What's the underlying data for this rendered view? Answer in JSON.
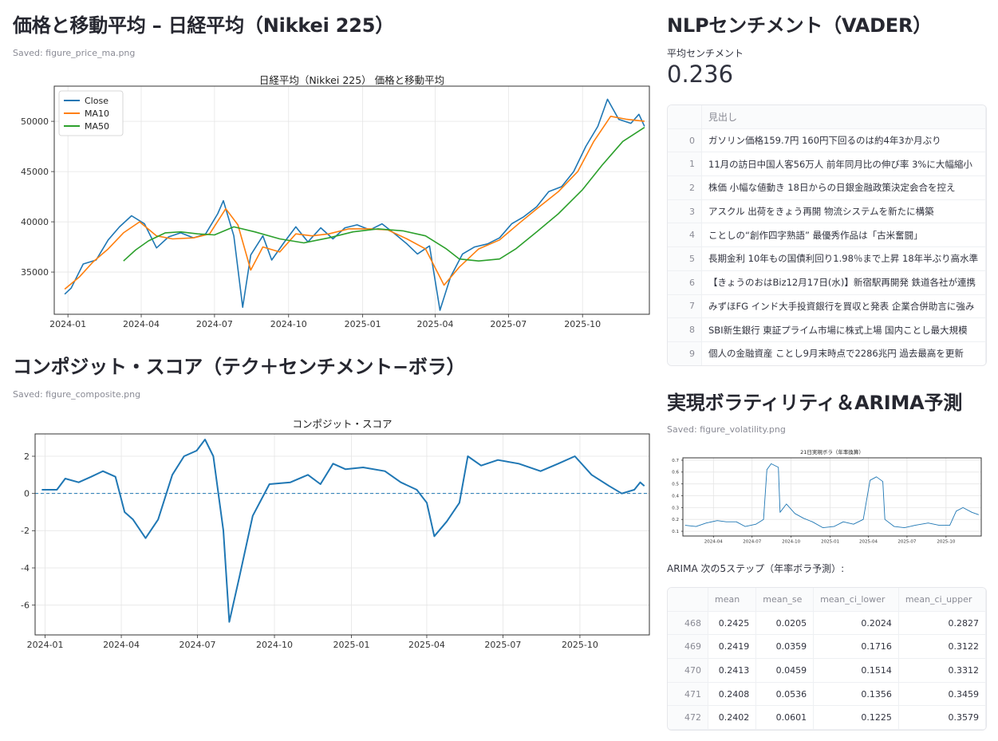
{
  "sections": {
    "price": {
      "title": "価格と移動平均 – 日経平均（Nikkei 225）",
      "caption": "Saved: figure_price_ma.png"
    },
    "composite": {
      "title": "コンポジット・スコア（テク＋センチメント−ボラ）",
      "caption": "Saved: figure_composite.png"
    },
    "nlp": {
      "title": "NLPセンチメント（VADER）",
      "metric_label": "平均センチメント",
      "metric_value": "0.236"
    },
    "volatility": {
      "title": "実現ボラティリティ＆ARIMA予測",
      "caption": "Saved: figure_volatility.png",
      "arima_label": "ARIMA 次の5ステップ（年率ボラ予測）:"
    }
  },
  "headlines_table": {
    "header": "見出し",
    "rows": [
      {
        "idx": "0",
        "text": "ガソリン価格159.7円 160円下回るのは約4年3か月ぶり"
      },
      {
        "idx": "1",
        "text": "11月の訪日中国人客56万人 前年同月比の伸び率 3%に大幅縮小"
      },
      {
        "idx": "2",
        "text": "株価 小幅な値動き 18日からの日銀金融政策決定会合を控え"
      },
      {
        "idx": "3",
        "text": "アスクル 出荷をきょう再開 物流システムを新たに構築"
      },
      {
        "idx": "4",
        "text": "ことしの“創作四字熟語” 最優秀作品は「古米奮闘」"
      },
      {
        "idx": "5",
        "text": "長期金利 10年もの国債利回り1.98％まで上昇 18年半ぶり高水準"
      },
      {
        "idx": "6",
        "text": "【きょうのおはBiz12月17日(水)】新宿駅再開発 鉄道各社が連携"
      },
      {
        "idx": "7",
        "text": "みずほFG インド大手投資銀行を買収と発表 企業合併助言に強み"
      },
      {
        "idx": "8",
        "text": "SBI新生銀行 東証プライム市場に株式上場 国内ことし最大規模"
      },
      {
        "idx": "9",
        "text": "個人の金融資産 ことし9月末時点で2286兆円 過去最高を更新"
      }
    ]
  },
  "arima_table": {
    "headers": [
      "mean",
      "mean_se",
      "mean_ci_lower",
      "mean_ci_upper"
    ],
    "rows": [
      {
        "idx": "468",
        "cells": [
          "0.2425",
          "0.0205",
          "0.2024",
          "0.2827"
        ]
      },
      {
        "idx": "469",
        "cells": [
          "0.2419",
          "0.0359",
          "0.1716",
          "0.3122"
        ]
      },
      {
        "idx": "470",
        "cells": [
          "0.2413",
          "0.0459",
          "0.1514",
          "0.3312"
        ]
      },
      {
        "idx": "471",
        "cells": [
          "0.2408",
          "0.0536",
          "0.1356",
          "0.3459"
        ]
      },
      {
        "idx": "472",
        "cells": [
          "0.2402",
          "0.0601",
          "0.1225",
          "0.3579"
        ]
      }
    ]
  },
  "chart_data": [
    {
      "id": "price_ma",
      "type": "line",
      "title": "日経平均（Nikkei 225） 価格と移動平均",
      "x_ticks": [
        "2024-01",
        "2024-04",
        "2024-07",
        "2024-10",
        "2025-01",
        "2025-04",
        "2025-07",
        "2025-10"
      ],
      "y_ticks": [
        35000,
        40000,
        45000,
        50000
      ],
      "ylim": [
        30800,
        53500
      ],
      "legend": "top-left",
      "grid": true,
      "colors": {
        "Close": "#1f77b4",
        "MA10": "#ff7f0e",
        "MA50": "#2ca02c"
      },
      "series": [
        {
          "name": "Close",
          "points": [
            [
              "2023-12-28",
              32800
            ],
            [
              "2024-01-05",
              33400
            ],
            [
              "2024-01-20",
              35800
            ],
            [
              "2024-02-05",
              36200
            ],
            [
              "2024-02-20",
              38200
            ],
            [
              "2024-03-05",
              39500
            ],
            [
              "2024-03-20",
              40600
            ],
            [
              "2024-04-05",
              39800
            ],
            [
              "2024-04-20",
              37400
            ],
            [
              "2024-05-05",
              38500
            ],
            [
              "2024-05-20",
              38900
            ],
            [
              "2024-06-05",
              38400
            ],
            [
              "2024-06-20",
              38800
            ],
            [
              "2024-07-05",
              40800
            ],
            [
              "2024-07-12",
              42100
            ],
            [
              "2024-07-25",
              38600
            ],
            [
              "2024-08-05",
              31500
            ],
            [
              "2024-08-15",
              36700
            ],
            [
              "2024-08-30",
              38600
            ],
            [
              "2024-09-10",
              36200
            ],
            [
              "2024-09-25",
              37900
            ],
            [
              "2024-10-10",
              39500
            ],
            [
              "2024-10-25",
              38000
            ],
            [
              "2024-11-10",
              39400
            ],
            [
              "2024-11-25",
              38300
            ],
            [
              "2024-12-10",
              39400
            ],
            [
              "2024-12-25",
              39700
            ],
            [
              "2025-01-10",
              39200
            ],
            [
              "2025-01-25",
              39800
            ],
            [
              "2025-02-10",
              38800
            ],
            [
              "2025-02-25",
              37800
            ],
            [
              "2025-03-10",
              36800
            ],
            [
              "2025-03-25",
              37600
            ],
            [
              "2025-04-07",
              31200
            ],
            [
              "2025-04-20",
              34500
            ],
            [
              "2025-05-05",
              36800
            ],
            [
              "2025-05-20",
              37500
            ],
            [
              "2025-06-05",
              37800
            ],
            [
              "2025-06-20",
              38400
            ],
            [
              "2025-07-05",
              39800
            ],
            [
              "2025-07-20",
              40500
            ],
            [
              "2025-08-05",
              41500
            ],
            [
              "2025-08-20",
              43000
            ],
            [
              "2025-09-05",
              43500
            ],
            [
              "2025-09-20",
              45000
            ],
            [
              "2025-10-05",
              47500
            ],
            [
              "2025-10-20",
              49500
            ],
            [
              "2025-11-01",
              52200
            ],
            [
              "2025-11-15",
              50200
            ],
            [
              "2025-11-30",
              49800
            ],
            [
              "2025-12-10",
              50700
            ],
            [
              "2025-12-17",
              49500
            ]
          ]
        },
        {
          "name": "MA10",
          "points": [
            [
              "2023-12-28",
              33300
            ],
            [
              "2024-01-15",
              34500
            ],
            [
              "2024-02-01",
              36000
            ],
            [
              "2024-02-20",
              37300
            ],
            [
              "2024-03-10",
              38900
            ],
            [
              "2024-03-30",
              40000
            ],
            [
              "2024-04-20",
              38600
            ],
            [
              "2024-05-10",
              38300
            ],
            [
              "2024-06-05",
              38400
            ],
            [
              "2024-06-25",
              38800
            ],
            [
              "2024-07-15",
              41300
            ],
            [
              "2024-07-30",
              39700
            ],
            [
              "2024-08-15",
              35200
            ],
            [
              "2024-08-30",
              37500
            ],
            [
              "2024-09-20",
              37000
            ],
            [
              "2024-10-10",
              38800
            ],
            [
              "2024-10-30",
              38600
            ],
            [
              "2024-11-20",
              38800
            ],
            [
              "2024-12-15",
              39300
            ],
            [
              "2025-01-10",
              39300
            ],
            [
              "2025-02-01",
              39200
            ],
            [
              "2025-02-25",
              38300
            ],
            [
              "2025-03-20",
              37300
            ],
            [
              "2025-04-12",
              33700
            ],
            [
              "2025-05-01",
              35500
            ],
            [
              "2025-05-25",
              37300
            ],
            [
              "2025-06-20",
              38200
            ],
            [
              "2025-07-15",
              39900
            ],
            [
              "2025-08-10",
              41600
            ],
            [
              "2025-09-01",
              43000
            ],
            [
              "2025-09-25",
              45000
            ],
            [
              "2025-10-15",
              48000
            ],
            [
              "2025-11-05",
              50500
            ],
            [
              "2025-11-25",
              50200
            ],
            [
              "2025-12-17",
              50000
            ]
          ]
        },
        {
          "name": "MA50",
          "points": [
            [
              "2024-03-10",
              36100
            ],
            [
              "2024-03-25",
              37200
            ],
            [
              "2024-04-10",
              38100
            ],
            [
              "2024-05-01",
              38900
            ],
            [
              "2024-05-20",
              39000
            ],
            [
              "2024-06-10",
              38800
            ],
            [
              "2024-07-01",
              38700
            ],
            [
              "2024-07-25",
              39500
            ],
            [
              "2024-08-20",
              39000
            ],
            [
              "2024-09-20",
              38300
            ],
            [
              "2024-10-20",
              37900
            ],
            [
              "2024-11-20",
              38400
            ],
            [
              "2024-12-20",
              39000
            ],
            [
              "2025-01-20",
              39300
            ],
            [
              "2025-02-20",
              39100
            ],
            [
              "2025-03-20",
              38600
            ],
            [
              "2025-04-15",
              37300
            ],
            [
              "2025-05-01",
              36300
            ],
            [
              "2025-05-25",
              36100
            ],
            [
              "2025-06-20",
              36300
            ],
            [
              "2025-07-10",
              37300
            ],
            [
              "2025-08-05",
              39000
            ],
            [
              "2025-09-01",
              40800
            ],
            [
              "2025-10-01",
              43200
            ],
            [
              "2025-10-25",
              45600
            ],
            [
              "2025-11-20",
              48000
            ],
            [
              "2025-12-17",
              49400
            ]
          ]
        }
      ]
    },
    {
      "id": "composite",
      "type": "line",
      "title": "コンポジット・スコア",
      "x_ticks": [
        "2024-01",
        "2024-04",
        "2024-07",
        "2024-10",
        "2025-01",
        "2025-04",
        "2025-07",
        "2025-10"
      ],
      "y_ticks": [
        -6,
        -4,
        -2,
        0,
        2
      ],
      "ylim": [
        -7.6,
        3.2
      ],
      "grid": true,
      "baseline": 0,
      "colors": {
        "score": "#1f77b4",
        "baseline": "#1f77b4"
      },
      "series": [
        {
          "name": "",
          "points": [
            [
              "2023-12-28",
              0.2
            ],
            [
              "2024-01-15",
              0.2
            ],
            [
              "2024-01-25",
              0.8
            ],
            [
              "2024-02-10",
              0.6
            ],
            [
              "2024-02-25",
              0.9
            ],
            [
              "2024-03-10",
              1.2
            ],
            [
              "2024-03-25",
              0.9
            ],
            [
              "2024-04-05",
              -1.0
            ],
            [
              "2024-04-15",
              -1.4
            ],
            [
              "2024-04-30",
              -2.4
            ],
            [
              "2024-05-15",
              -1.4
            ],
            [
              "2024-06-01",
              1.0
            ],
            [
              "2024-06-15",
              2.0
            ],
            [
              "2024-06-30",
              2.3
            ],
            [
              "2024-07-10",
              2.9
            ],
            [
              "2024-07-20",
              2.0
            ],
            [
              "2024-08-01",
              -2.0
            ],
            [
              "2024-08-08",
              -6.9
            ],
            [
              "2024-08-20",
              -4.5
            ],
            [
              "2024-09-05",
              -1.2
            ],
            [
              "2024-09-25",
              0.5
            ],
            [
              "2024-10-20",
              0.6
            ],
            [
              "2024-11-10",
              1.0
            ],
            [
              "2024-11-25",
              0.5
            ],
            [
              "2024-12-10",
              1.6
            ],
            [
              "2024-12-25",
              1.3
            ],
            [
              "2025-01-15",
              1.4
            ],
            [
              "2025-02-10",
              1.2
            ],
            [
              "2025-03-01",
              0.6
            ],
            [
              "2025-03-20",
              0.2
            ],
            [
              "2025-04-01",
              -0.5
            ],
            [
              "2025-04-10",
              -2.3
            ],
            [
              "2025-04-25",
              -1.5
            ],
            [
              "2025-05-10",
              -0.5
            ],
            [
              "2025-05-20",
              2.0
            ],
            [
              "2025-06-05",
              1.5
            ],
            [
              "2025-06-25",
              1.8
            ],
            [
              "2025-07-20",
              1.6
            ],
            [
              "2025-08-15",
              1.2
            ],
            [
              "2025-09-05",
              1.6
            ],
            [
              "2025-09-25",
              2.0
            ],
            [
              "2025-10-15",
              1.0
            ],
            [
              "2025-11-05",
              0.4
            ],
            [
              "2025-11-20",
              0.0
            ],
            [
              "2025-12-05",
              0.2
            ],
            [
              "2025-12-12",
              0.6
            ],
            [
              "2025-12-17",
              0.4
            ]
          ]
        }
      ]
    },
    {
      "id": "volatility",
      "type": "line",
      "title": "21日実現ボラ（年率換算）",
      "x_ticks": [
        "2024-04",
        "2024-07",
        "2024-10",
        "2025-01",
        "2025-04",
        "2025-07",
        "2025-10"
      ],
      "y_ticks": [
        0.1,
        0.2,
        0.3,
        0.4,
        0.5,
        0.6,
        0.7
      ],
      "ylim": [
        0.06,
        0.72
      ],
      "grid": true,
      "colors": {
        "vol": "#1f77b4"
      },
      "series": [
        {
          "name": "",
          "points": [
            [
              "2024-01-25",
              0.15
            ],
            [
              "2024-02-20",
              0.14
            ],
            [
              "2024-03-15",
              0.17
            ],
            [
              "2024-04-10",
              0.19
            ],
            [
              "2024-05-01",
              0.18
            ],
            [
              "2024-05-25",
              0.18
            ],
            [
              "2024-06-15",
              0.14
            ],
            [
              "2024-07-10",
              0.16
            ],
            [
              "2024-07-28",
              0.2
            ],
            [
              "2024-08-05",
              0.62
            ],
            [
              "2024-08-15",
              0.67
            ],
            [
              "2024-09-01",
              0.64
            ],
            [
              "2024-09-05",
              0.26
            ],
            [
              "2024-09-20",
              0.33
            ],
            [
              "2024-10-10",
              0.25
            ],
            [
              "2024-10-30",
              0.21
            ],
            [
              "2024-11-20",
              0.18
            ],
            [
              "2024-12-15",
              0.13
            ],
            [
              "2025-01-10",
              0.14
            ],
            [
              "2025-02-01",
              0.18
            ],
            [
              "2025-02-25",
              0.16
            ],
            [
              "2025-03-20",
              0.2
            ],
            [
              "2025-04-05",
              0.53
            ],
            [
              "2025-04-20",
              0.56
            ],
            [
              "2025-05-05",
              0.52
            ],
            [
              "2025-05-10",
              0.2
            ],
            [
              "2025-06-01",
              0.14
            ],
            [
              "2025-06-25",
              0.13
            ],
            [
              "2025-07-20",
              0.15
            ],
            [
              "2025-08-20",
              0.17
            ],
            [
              "2025-09-15",
              0.15
            ],
            [
              "2025-10-10",
              0.15
            ],
            [
              "2025-10-25",
              0.27
            ],
            [
              "2025-11-10",
              0.3
            ],
            [
              "2025-12-01",
              0.26
            ],
            [
              "2025-12-17",
              0.24
            ]
          ]
        }
      ]
    }
  ]
}
